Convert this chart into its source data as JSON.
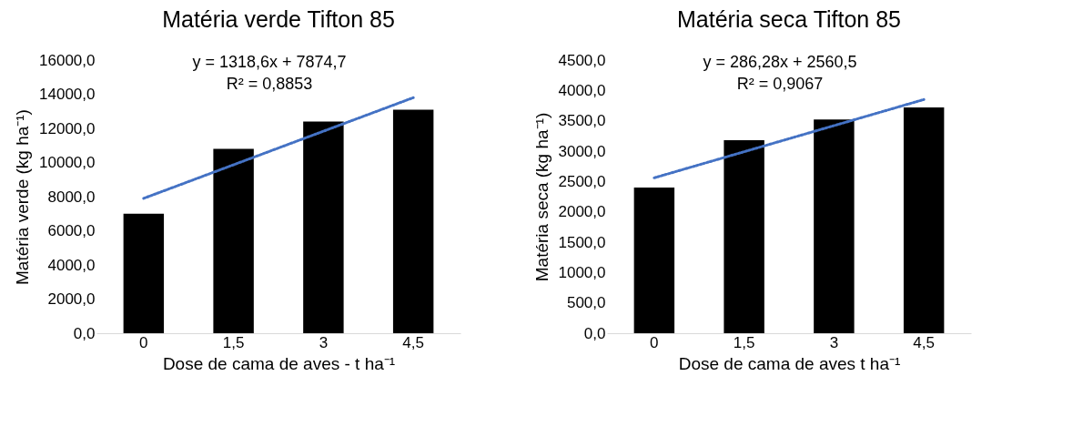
{
  "chart_data": [
    {
      "type": "bar",
      "title": "Matéria verde Tifton 85",
      "xlabel": "Dose de cama de aves - t ha⁻¹",
      "ylabel": "Matéria verde (kg ha⁻¹)",
      "categories": [
        "0",
        "1,5",
        "3",
        "4,5"
      ],
      "series": [
        {
          "color": "#000000",
          "values": [
            7000,
            10800,
            12400,
            13100
          ]
        },
        {
          "type": "line",
          "color": "#4472c4",
          "line_style": "dotted",
          "x": [
            "0",
            "4,5"
          ],
          "values": [
            7900,
            13800
          ]
        }
      ],
      "ylim": [
        0,
        16000
      ],
      "yticks": [
        {
          "value": 0,
          "label": "0,0"
        },
        {
          "value": 2000,
          "label": "2000,0"
        },
        {
          "value": 4000,
          "label": "4000,0"
        },
        {
          "value": 6000,
          "label": "6000,0"
        },
        {
          "value": 8000,
          "label": "8000,0"
        },
        {
          "value": 10000,
          "label": "10000,0"
        },
        {
          "value": 12000,
          "label": "12000,0"
        },
        {
          "value": 14000,
          "label": "14000,0"
        },
        {
          "value": 16000,
          "label": "16000,0"
        }
      ],
      "annotations": [
        "y = 1318,6x + 7874,7",
        "R² = 0,8853"
      ]
    },
    {
      "type": "bar",
      "title": "Matéria seca Tifton 85",
      "xlabel": "Dose de cama de aves t ha⁻¹",
      "ylabel": "Matéria seca (kg ha⁻¹)",
      "categories": [
        "0",
        "1,5",
        "3",
        "4,5"
      ],
      "series": [
        {
          "color": "#000000",
          "values": [
            2400,
            3180,
            3520,
            3720
          ]
        },
        {
          "type": "line",
          "color": "#4472c4",
          "line_style": "dotted",
          "x": [
            "0",
            "4,5"
          ],
          "values": [
            2560,
            3850
          ]
        }
      ],
      "ylim": [
        0,
        4500
      ],
      "yticks": [
        {
          "value": 0,
          "label": "0,0"
        },
        {
          "value": 500,
          "label": "500,0"
        },
        {
          "value": 1000,
          "label": "1000,0"
        },
        {
          "value": 1500,
          "label": "1500,0"
        },
        {
          "value": 2000,
          "label": "2000,0"
        },
        {
          "value": 2500,
          "label": "2500,0"
        },
        {
          "value": 3000,
          "label": "3000,0"
        },
        {
          "value": 3500,
          "label": "3500,0"
        },
        {
          "value": 4000,
          "label": "4000,0"
        },
        {
          "value": 4500,
          "label": "4500,0"
        }
      ],
      "annotations": [
        "y = 286,28x + 2560,5",
        "R² = 0,9067"
      ]
    }
  ]
}
